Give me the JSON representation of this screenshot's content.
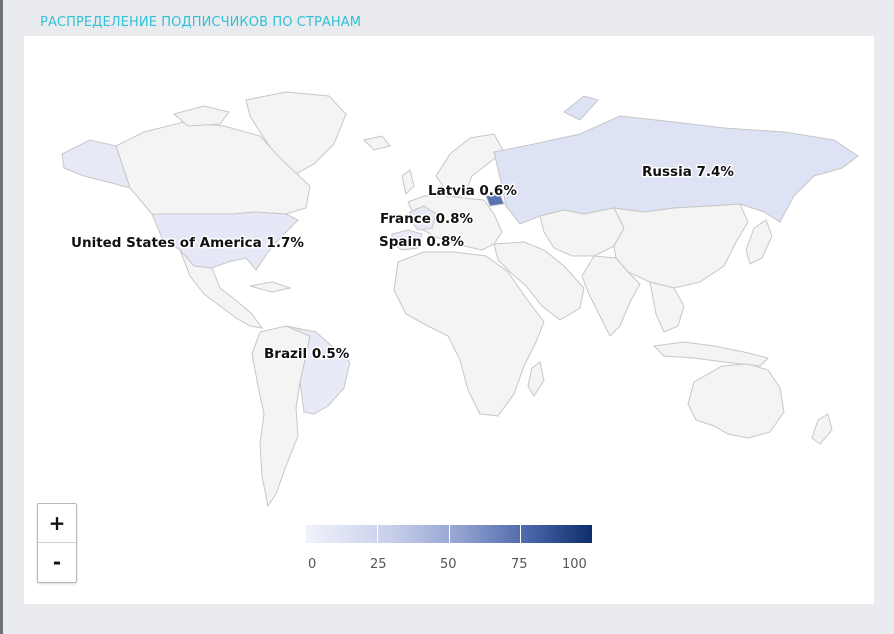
{
  "title": "РАСПРЕДЕЛЕНИЕ ПОДПИСЧИКОВ ПО СТРАНАМ",
  "colors": {
    "title": "#33c1d6",
    "land": "#f4f4f4",
    "border": "#c7c7c7",
    "scale_low": "#f0f2fb",
    "scale_high": "#0d2d6c"
  },
  "countries": [
    {
      "name": "Russia",
      "label": "Russia 7.4%",
      "percent": 7.4
    },
    {
      "name": "Latvia",
      "label": "Latvia 0.6%",
      "percent": 0.6
    },
    {
      "name": "France",
      "label": "France 0.8%",
      "percent": 0.8
    },
    {
      "name": "Spain",
      "label": "Spain 0.8%",
      "percent": 0.8
    },
    {
      "name": "United States of America",
      "label": "United States of America 1.7%",
      "percent": 1.7
    },
    {
      "name": "Brazil",
      "label": "Brazil 0.5%",
      "percent": 0.5
    }
  ],
  "zoom": {
    "in": "+",
    "out": "-"
  },
  "legend": {
    "ticks": [
      "0",
      "25",
      "50",
      "75",
      "100"
    ]
  }
}
